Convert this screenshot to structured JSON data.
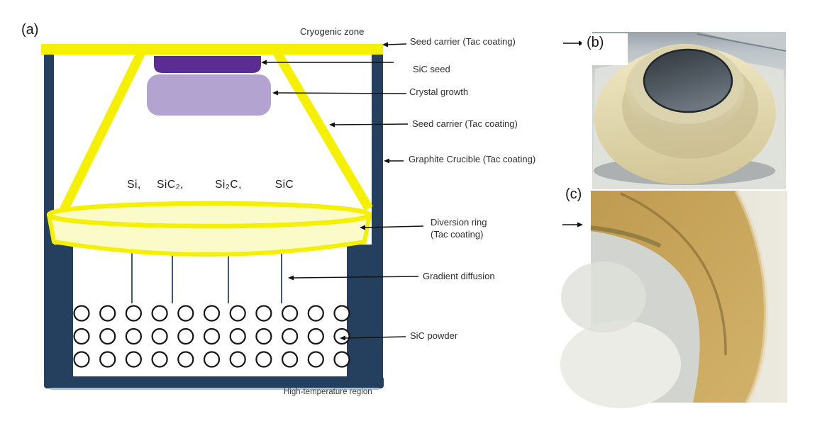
{
  "panel_a": {
    "tag": "(a)",
    "top_zone_label": "Cryogenic zone",
    "bottom_zone_label": "High-temperature region",
    "species": [
      "Si,",
      "SiC₂,",
      "Si₂C,",
      "SiC"
    ],
    "labels": {
      "seed_carrier_top": "Seed carrier (Tac coating)",
      "sic_seed": "SiC seed",
      "crystal_growth": "Crystal growth",
      "seed_carrier_cone": "Seed carrier (Tac coating)",
      "graphite_crucible": "Graphite Crucible (Tac coating)",
      "diversion_ring_line1": "Diversion ring",
      "diversion_ring_line2": "(Tac coating)",
      "gradient_diffusion": "Gradient diffusion",
      "sic_powder": "SiC powder"
    },
    "powder_grid": {
      "rows": 3,
      "cols": 11
    },
    "colors": {
      "crucible_navy": "#24405E",
      "carrier_yellow": "#F5F000",
      "ring_fill": "#FBFBC9",
      "seed_purple": "#5B2C91",
      "crystal_purple": "#B2A3D0"
    }
  },
  "panel_b": {
    "tag": "(b)"
  },
  "panel_c": {
    "tag": "(c)"
  }
}
